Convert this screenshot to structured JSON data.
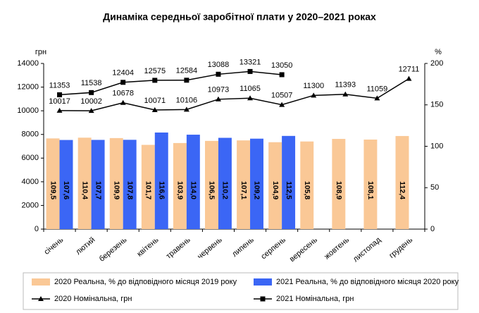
{
  "chart_data": {
    "type": "bar_line",
    "title": "Динаміка середньої заробітної плати у 2020–2021 роках",
    "ylabel": "грн",
    "y2label": "%",
    "categories": [
      "січень",
      "лютий",
      "березень",
      "квітень",
      "травень",
      "червень",
      "липень",
      "серпень",
      "вересень",
      "жовтень",
      "листопад",
      "грудень"
    ],
    "ylim": [
      0,
      14000
    ],
    "yticks": [
      0,
      2000,
      4000,
      6000,
      8000,
      10000,
      12000,
      14000
    ],
    "y2lim": [
      0,
      200
    ],
    "y2ticks": [
      0,
      50,
      100,
      150,
      200
    ],
    "grid": false,
    "series": [
      {
        "name": "2020 Реальна, % до відповідного місяця 2019 року",
        "type": "bar",
        "axis": "y2",
        "color": "#fac896",
        "values": [
          109.5,
          110.4,
          109.9,
          101.7,
          103.9,
          106.5,
          107.1,
          104.9,
          105.8,
          108.9,
          108.1,
          112.4
        ],
        "value_labels": [
          "109,5",
          "110,4",
          "109,9",
          "101,7",
          "103,9",
          "106,5",
          "107,1",
          "104,9",
          "105,8",
          "108,9",
          "108,1",
          "112,4"
        ]
      },
      {
        "name": "2021 Реальна, % до відповідного місяця 2020 року",
        "type": "bar",
        "axis": "y2",
        "color": "#3b66f5",
        "values": [
          107.6,
          107.7,
          107.8,
          116.6,
          114.0,
          110.2,
          109.2,
          112.5,
          null,
          null,
          null,
          null
        ],
        "value_labels": [
          "107,6",
          "107,7",
          "107,8",
          "116,6",
          "114,0",
          "110,2",
          "109,2",
          "112,5",
          null,
          null,
          null,
          null
        ]
      },
      {
        "name": "2020 Номінальна, грн",
        "type": "line",
        "marker": "triangle",
        "color": "#000000",
        "values": [
          10017,
          10002,
          10678,
          10071,
          10106,
          10973,
          11065,
          10507,
          11300,
          11393,
          11059,
          12711
        ]
      },
      {
        "name": "2021 Номінальна, грн",
        "type": "line",
        "marker": "square",
        "color": "#000000",
        "values": [
          11353,
          11538,
          12404,
          12575,
          12584,
          13088,
          13321,
          13050,
          null,
          null,
          null,
          null
        ]
      }
    ]
  }
}
